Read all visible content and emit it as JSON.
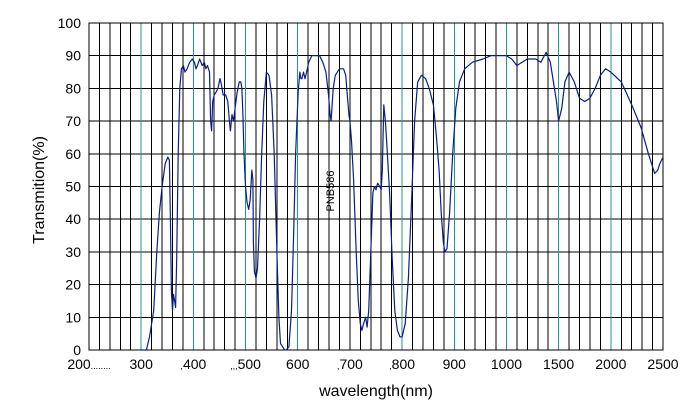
{
  "chart_data": {
    "type": "line",
    "title": "",
    "xlabel": "wavelength(nm)",
    "ylabel": "Transmition(%)",
    "ylim": [
      0,
      100
    ],
    "y_ticks": [
      "0",
      "10",
      "20",
      "30",
      "40",
      "50",
      "60",
      "70",
      "80",
      "90",
      "100"
    ],
    "x_tick_labels": [
      {
        "prefix": "",
        "text": "200",
        "suffix": "........"
      },
      {
        "prefix": "",
        "text": "300",
        "suffix": ""
      },
      {
        "prefix": ",",
        "text": "400",
        "suffix": ""
      },
      {
        "prefix": ",,,",
        "text": "500",
        "suffix": ""
      },
      {
        "prefix": "",
        "text": "600",
        "suffix": ""
      },
      {
        "prefix": ",",
        "text": "700",
        "suffix": ""
      },
      {
        "prefix": ",",
        "text": "800",
        "suffix": ""
      },
      {
        "prefix": "",
        "text": "900",
        "suffix": ""
      },
      {
        "prefix": "",
        "text": "1000",
        "suffix": ""
      },
      {
        "prefix": "",
        "text": "1500",
        "suffix": ""
      },
      {
        "prefix": "",
        "text": "2000",
        "suffix": ""
      },
      {
        "prefix": "",
        "text": "2500",
        "suffix": ""
      }
    ],
    "grid": true,
    "annotation": "PNB586",
    "line_color": "#0a1e8c",
    "grid_color": "#000000",
    "highlight_grid_color": "#1e9a8a",
    "series": [
      {
        "name": "",
        "points": [
          [
            300,
            0
          ],
          [
            310,
            0
          ],
          [
            316,
            4
          ],
          [
            324,
            12
          ],
          [
            330,
            30
          ],
          [
            335,
            42
          ],
          [
            340,
            50
          ],
          [
            346,
            57
          ],
          [
            351,
            59
          ],
          [
            354,
            58
          ],
          [
            356,
            40
          ],
          [
            358,
            18
          ],
          [
            360,
            12
          ],
          [
            362,
            17
          ],
          [
            364,
            15
          ],
          [
            366,
            13
          ],
          [
            368,
            28
          ],
          [
            371,
            60
          ],
          [
            374,
            80
          ],
          [
            377,
            86
          ],
          [
            381,
            87
          ],
          [
            384,
            85
          ],
          [
            388,
            86
          ],
          [
            393,
            88
          ],
          [
            398,
            89
          ],
          [
            402,
            88
          ],
          [
            405,
            86
          ],
          [
            408,
            87
          ],
          [
            412,
            89
          ],
          [
            417,
            87
          ],
          [
            421,
            88
          ],
          [
            424,
            86
          ],
          [
            427,
            87
          ],
          [
            431,
            85
          ],
          [
            433,
            70
          ],
          [
            435,
            67
          ],
          [
            437,
            76
          ],
          [
            440,
            78
          ],
          [
            444,
            79
          ],
          [
            447,
            80
          ],
          [
            451,
            83
          ],
          [
            454,
            81
          ],
          [
            457,
            78
          ],
          [
            462,
            78
          ],
          [
            466,
            76
          ],
          [
            469,
            70
          ],
          [
            471,
            67
          ],
          [
            474,
            72
          ],
          [
            477,
            70
          ],
          [
            480,
            74
          ],
          [
            484,
            79
          ],
          [
            488,
            82
          ],
          [
            491,
            82
          ],
          [
            493,
            80
          ],
          [
            495,
            72
          ],
          [
            497,
            60
          ],
          [
            500,
            50
          ],
          [
            503,
            45
          ],
          [
            506,
            43
          ],
          [
            509,
            46
          ],
          [
            512,
            55
          ],
          [
            514,
            52
          ],
          [
            515,
            33
          ],
          [
            517,
            24
          ],
          [
            520,
            22
          ],
          [
            523,
            25
          ],
          [
            527,
            40
          ],
          [
            531,
            60
          ],
          [
            535,
            76
          ],
          [
            540,
            85
          ],
          [
            545,
            84
          ],
          [
            550,
            78
          ],
          [
            555,
            60
          ],
          [
            560,
            30
          ],
          [
            564,
            10
          ],
          [
            567,
            2
          ],
          [
            571,
            1
          ],
          [
            575,
            0
          ],
          [
            578,
            0
          ],
          [
            583,
            1
          ],
          [
            588,
            12
          ],
          [
            592,
            35
          ],
          [
            596,
            60
          ],
          [
            601,
            79
          ],
          [
            604,
            85
          ],
          [
            606,
            83
          ],
          [
            608,
            83
          ],
          [
            611,
            85
          ],
          [
            614,
            83
          ],
          [
            617,
            85
          ],
          [
            621,
            88
          ],
          [
            627,
            90
          ],
          [
            635,
            90
          ],
          [
            642,
            90
          ],
          [
            648,
            88
          ],
          [
            654,
            85
          ],
          [
            659,
            78
          ],
          [
            662,
            72
          ],
          [
            664,
            70
          ],
          [
            668,
            80
          ],
          [
            672,
            84
          ],
          [
            680,
            86
          ],
          [
            688,
            86
          ],
          [
            692,
            84
          ],
          [
            698,
            72
          ],
          [
            700,
            70
          ],
          [
            703,
            64
          ],
          [
            707,
            52
          ],
          [
            712,
            30
          ],
          [
            716,
            15
          ],
          [
            720,
            8
          ],
          [
            723,
            6
          ],
          [
            726,
            8
          ],
          [
            730,
            10
          ],
          [
            733,
            7
          ],
          [
            736,
            12
          ],
          [
            740,
            30
          ],
          [
            744,
            48
          ],
          [
            747,
            50
          ],
          [
            750,
            49
          ],
          [
            753,
            51
          ],
          [
            757,
            50
          ],
          [
            760,
            49
          ],
          [
            762,
            55
          ],
          [
            765,
            75
          ],
          [
            768,
            70
          ],
          [
            771,
            62
          ],
          [
            776,
            48
          ],
          [
            781,
            28
          ],
          [
            786,
            12
          ],
          [
            791,
            6
          ],
          [
            796,
            4
          ],
          [
            800,
            4
          ],
          [
            806,
            8
          ],
          [
            812,
            22
          ],
          [
            818,
            45
          ],
          [
            824,
            70
          ],
          [
            830,
            82
          ],
          [
            837,
            84
          ],
          [
            845,
            83
          ],
          [
            852,
            80
          ],
          [
            860,
            75
          ],
          [
            866,
            65
          ],
          [
            871,
            55
          ],
          [
            875,
            42
          ],
          [
            879,
            33
          ],
          [
            882,
            30
          ],
          [
            886,
            31
          ],
          [
            891,
            42
          ],
          [
            897,
            60
          ],
          [
            903,
            74
          ],
          [
            910,
            82
          ],
          [
            920,
            86
          ],
          [
            935,
            88
          ],
          [
            955,
            89
          ],
          [
            970,
            90
          ],
          [
            985,
            90
          ],
          [
            1000,
            90
          ],
          [
            1050,
            89
          ],
          [
            1100,
            87
          ],
          [
            1200,
            89
          ],
          [
            1280,
            89
          ],
          [
            1330,
            88
          ],
          [
            1380,
            91
          ],
          [
            1420,
            88
          ],
          [
            1450,
            82
          ],
          [
            1480,
            76
          ],
          [
            1500,
            70
          ],
          [
            1530,
            74
          ],
          [
            1560,
            82
          ],
          [
            1600,
            85
          ],
          [
            1650,
            82
          ],
          [
            1700,
            77
          ],
          [
            1750,
            76
          ],
          [
            1800,
            77
          ],
          [
            1850,
            80
          ],
          [
            1900,
            84
          ],
          [
            1950,
            86
          ],
          [
            2000,
            85
          ],
          [
            2100,
            82
          ],
          [
            2200,
            75
          ],
          [
            2290,
            68
          ],
          [
            2360,
            60
          ],
          [
            2420,
            54
          ],
          [
            2450,
            55
          ],
          [
            2470,
            57
          ],
          [
            2500,
            59
          ]
        ]
      }
    ]
  }
}
